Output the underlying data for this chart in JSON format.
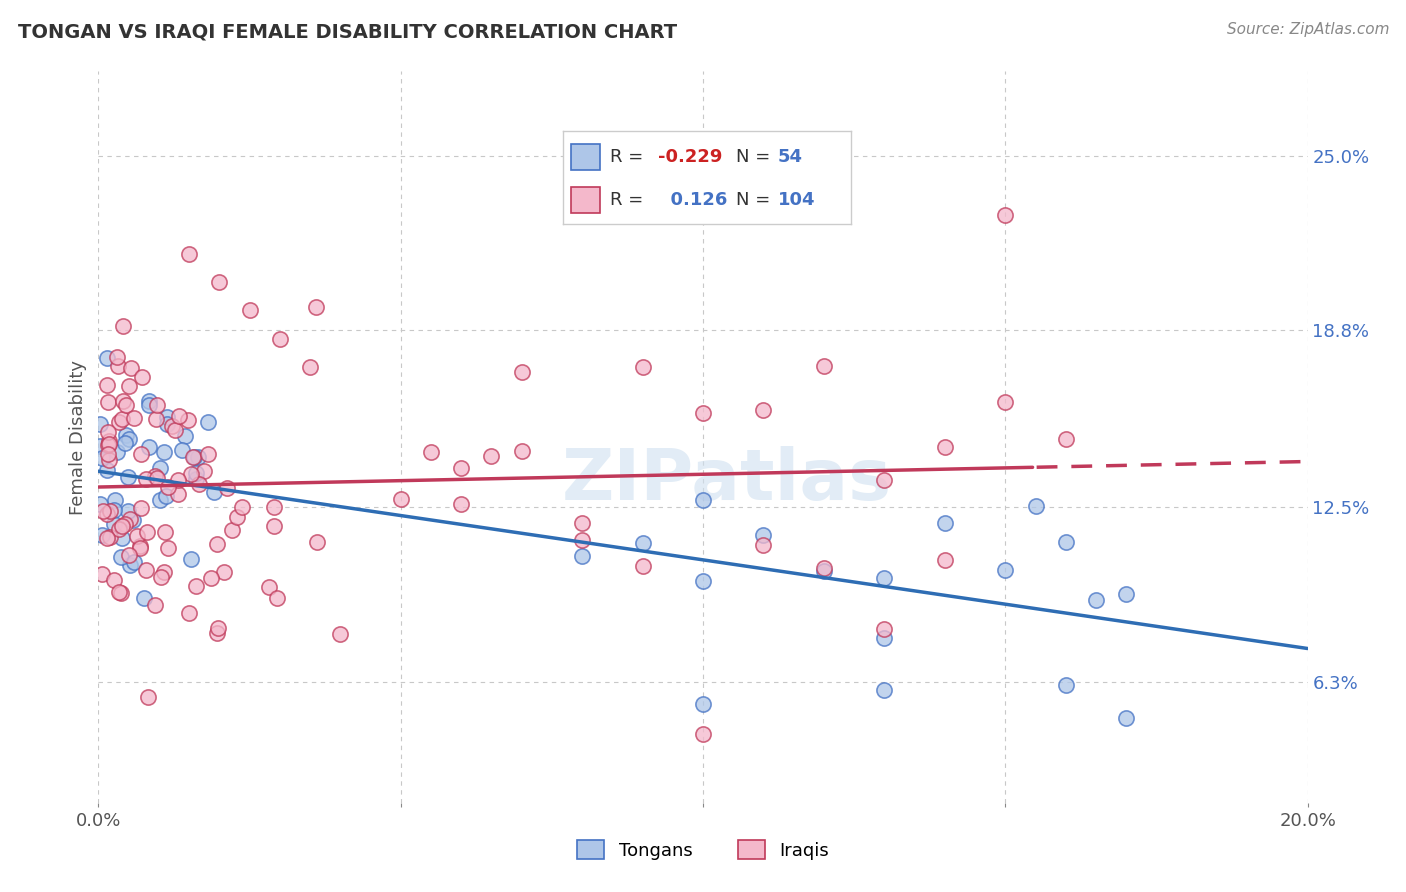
{
  "title": "TONGAN VS IRAQI FEMALE DISABILITY CORRELATION CHART",
  "source": "Source: ZipAtlas.com",
  "ylabel": "Female Disability",
  "xlim": [
    0.0,
    0.2
  ],
  "ylim": [
    0.02,
    0.28
  ],
  "right_yticks": [
    0.063,
    0.125,
    0.188,
    0.25
  ],
  "right_yticklabels": [
    "6.3%",
    "12.5%",
    "18.8%",
    "25.0%"
  ],
  "legend_R_tongan": "-0.229",
  "legend_N_tongan": "54",
  "legend_R_iraqi": "0.126",
  "legend_N_iraqi": "104",
  "color_tongan_fill": "#aec6e8",
  "color_tongan_edge": "#4472c4",
  "color_iraqi_fill": "#f4b8cb",
  "color_iraqi_edge": "#c0395a",
  "color_tongan_line": "#2e6db4",
  "color_iraqi_line": "#c0395a",
  "watermark": "ZIPatlas",
  "background_color": "#ffffff",
  "grid_color": "#c8c8c8"
}
